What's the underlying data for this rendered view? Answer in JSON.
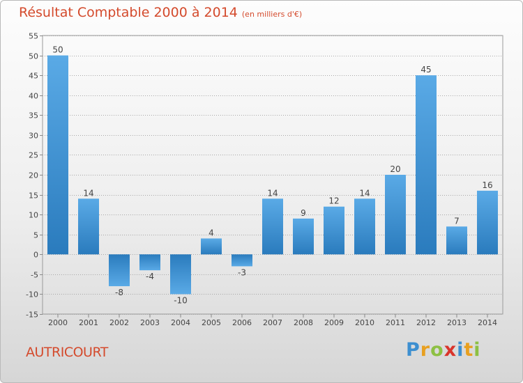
{
  "title": "Résultat Comptable 2000 à 2014",
  "unit": "(en milliers d'€)",
  "commune": "AUTRICOURT",
  "logo": {
    "letters": [
      "P",
      "r",
      "o",
      "x",
      "i",
      "t",
      "i"
    ],
    "colors": [
      "#3d8fd0",
      "#e8a020",
      "#8dc043",
      "#d9342b",
      "#3d8fd0",
      "#e8a020",
      "#8dc043"
    ]
  },
  "colors": {
    "bar": "#2f86c8",
    "title": "#d44a2c"
  },
  "chart_data": {
    "type": "bar",
    "title": "Résultat Comptable 2000 à 2014",
    "categories": [
      "2000",
      "2001",
      "2002",
      "2003",
      "2004",
      "2005",
      "2006",
      "2007",
      "2008",
      "2009",
      "2010",
      "2011",
      "2012",
      "2013",
      "2014"
    ],
    "values": [
      50,
      14,
      -8,
      -4,
      -10,
      4,
      -3,
      14,
      9,
      12,
      14,
      20,
      45,
      7,
      16
    ],
    "ylim": [
      -15,
      55
    ],
    "yticks": [
      -15,
      -10,
      -5,
      0,
      5,
      10,
      15,
      20,
      25,
      30,
      35,
      40,
      45,
      50,
      55
    ],
    "grid": true
  }
}
